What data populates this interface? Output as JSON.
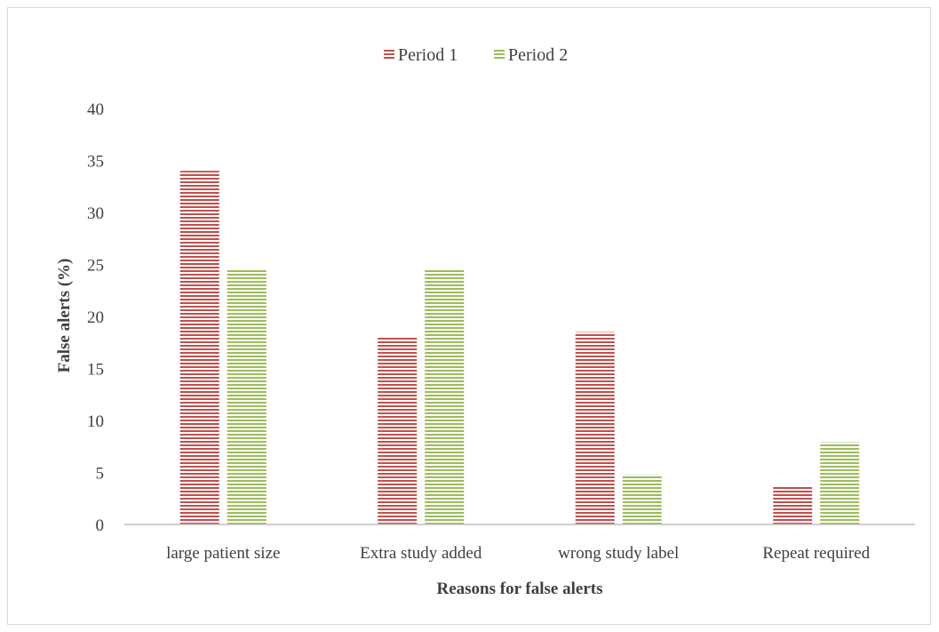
{
  "chart_data": {
    "type": "bar",
    "title": "",
    "xlabel": "Reasons for false alerts",
    "ylabel": "False alerts (%)",
    "ylim": [
      0,
      40
    ],
    "yticks": [
      0,
      5,
      10,
      15,
      20,
      25,
      30,
      35,
      40
    ],
    "grid": false,
    "legend_position": "top",
    "categories": [
      "large patient size",
      "Extra study added",
      "wrong study label",
      "Repeat required"
    ],
    "series": [
      {
        "name": "Period 1",
        "color": "#c0504d",
        "values": [
          34,
          18,
          18.5,
          3.6
        ]
      },
      {
        "name": "Period 2",
        "color": "#9bbb59",
        "values": [
          24.6,
          24.6,
          4.8,
          7.9
        ]
      }
    ]
  }
}
